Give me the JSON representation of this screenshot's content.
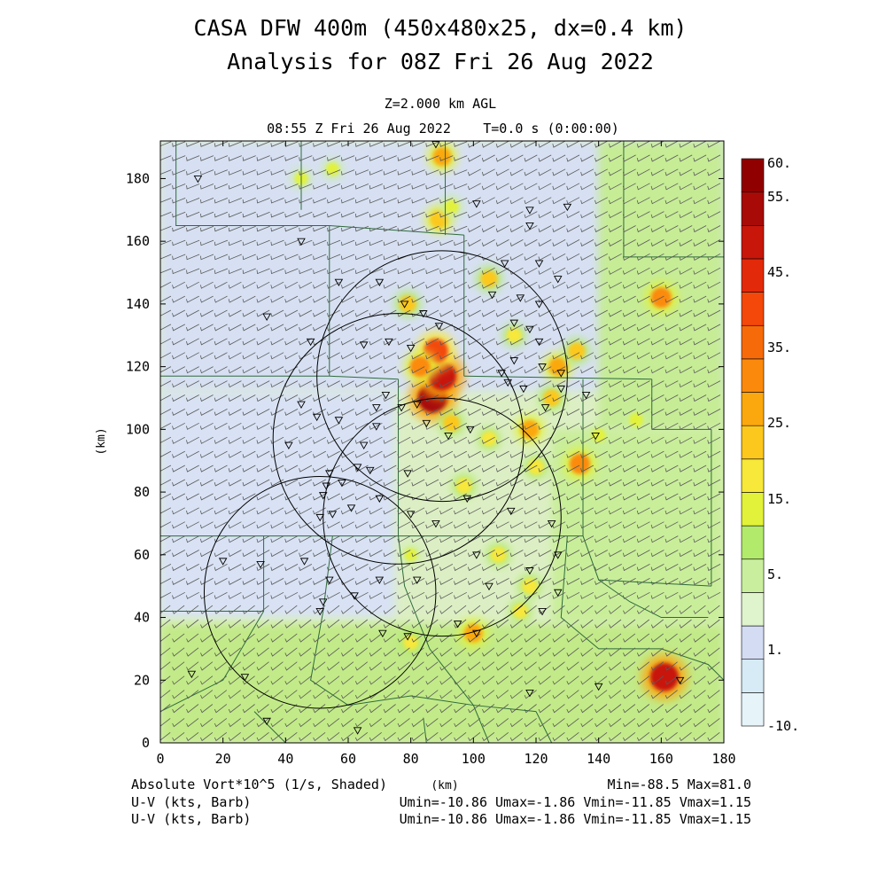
{
  "header": {
    "title_line1": "CASA DFW 400m (450x480x25, dx=0.4 km)",
    "title_line2": "Analysis for 08Z Fri 26 Aug 2022",
    "level": "Z=2.000 km AGL",
    "time": "08:55 Z Fri 26 Aug 2022",
    "elapsed": "T=0.0 s (0:00:00)"
  },
  "footer": {
    "field_label": "Absolute Vort*10^5 (1/s, Shaded)",
    "unit_label": "(km)",
    "minmax": "Min=-88.5 Max=81.0",
    "barb1_label": "U-V (kts, Barb)",
    "barb1_stats": "Umin=-10.86 Umax=-1.86 Vmin=-11.85 Vmax=1.15",
    "barb2_label": "U-V (kts, Barb)",
    "barb2_stats": "Umin=-10.86 Umax=-1.86 Vmin=-11.85 Vmax=1.15"
  },
  "chart_data": {
    "type": "heatmap",
    "field": "Absolute Vort*10^5 (1/s)",
    "ylabel": "(km)",
    "xlabel": "(km)",
    "xlim": [
      0,
      180
    ],
    "ylim": [
      0,
      192
    ],
    "x_ticks": [
      "0",
      "20",
      "40",
      "60",
      "80",
      "100",
      "120",
      "140",
      "160",
      "180"
    ],
    "y_ticks": [
      "0",
      "20",
      "40",
      "60",
      "80",
      "100",
      "120",
      "140",
      "160",
      "180"
    ],
    "x_tick_values": [
      0,
      20,
      40,
      60,
      80,
      100,
      120,
      140,
      160,
      180
    ],
    "y_tick_values": [
      0,
      20,
      40,
      60,
      80,
      100,
      120,
      140,
      160,
      180
    ],
    "min": -88.5,
    "max": 81.0,
    "colorbar": {
      "labels": [
        {
          "text": "60.",
          "value": 60
        },
        {
          "text": "55.",
          "value": 55
        },
        {
          "text": "45.",
          "value": 45
        },
        {
          "text": "35.",
          "value": 35
        },
        {
          "text": "25.",
          "value": 25
        },
        {
          "text": "15.",
          "value": 15
        },
        {
          "text": "5.",
          "value": 5
        },
        {
          "text": "1.",
          "value": 1
        },
        {
          "text": "-10.",
          "value": -10
        }
      ],
      "colors_bottom_to_top": [
        "#e6f4fa",
        "#d6ebf6",
        "#d4dcf4",
        "#dff3cc",
        "#c9ef9e",
        "#b2ea6c",
        "#e2f23a",
        "#f7e83a",
        "#fcc81e",
        "#fba80e",
        "#fb8a0c",
        "#f76a0a",
        "#f3480a",
        "#e22a0a",
        "#c8160a",
        "#a80a08",
        "#900000"
      ]
    },
    "radar_rings": [
      {
        "center": [
          90,
          117
        ],
        "radius_km": 40
      },
      {
        "center": [
          76,
          97
        ],
        "radius_km": 40
      },
      {
        "center": [
          90,
          72
        ],
        "radius_km": 38
      },
      {
        "center": [
          51,
          48
        ],
        "radius_km": 37
      }
    ],
    "hotspots": [
      {
        "x": 87,
        "y": 110,
        "v": 58
      },
      {
        "x": 90,
        "y": 117,
        "v": 55
      },
      {
        "x": 88,
        "y": 125,
        "v": 45
      },
      {
        "x": 83,
        "y": 120,
        "v": 35
      },
      {
        "x": 90,
        "y": 187,
        "v": 30
      },
      {
        "x": 89,
        "y": 167,
        "v": 28
      },
      {
        "x": 93,
        "y": 171,
        "v": 18
      },
      {
        "x": 118,
        "y": 100,
        "v": 30
      },
      {
        "x": 125,
        "y": 110,
        "v": 25
      },
      {
        "x": 127,
        "y": 120,
        "v": 30
      },
      {
        "x": 133,
        "y": 125,
        "v": 25
      },
      {
        "x": 134,
        "y": 89,
        "v": 35
      },
      {
        "x": 120,
        "y": 88,
        "v": 22
      },
      {
        "x": 105,
        "y": 97,
        "v": 20
      },
      {
        "x": 93,
        "y": 102,
        "v": 25
      },
      {
        "x": 79,
        "y": 140,
        "v": 25
      },
      {
        "x": 105,
        "y": 148,
        "v": 25
      },
      {
        "x": 113,
        "y": 130,
        "v": 20
      },
      {
        "x": 160,
        "y": 142,
        "v": 35
      },
      {
        "x": 161,
        "y": 21,
        "v": 55
      },
      {
        "x": 100,
        "y": 35,
        "v": 30
      },
      {
        "x": 108,
        "y": 60,
        "v": 22
      },
      {
        "x": 118,
        "y": 50,
        "v": 22
      },
      {
        "x": 115,
        "y": 42,
        "v": 20
      },
      {
        "x": 80,
        "y": 32,
        "v": 20
      },
      {
        "x": 97,
        "y": 82,
        "v": 22
      },
      {
        "x": 140,
        "y": 98,
        "v": 18
      },
      {
        "x": 152,
        "y": 103,
        "v": 18
      },
      {
        "x": 80,
        "y": 60,
        "v": 15
      },
      {
        "x": 45,
        "y": 180,
        "v": 15
      },
      {
        "x": 55,
        "y": 183,
        "v": 15
      }
    ],
    "stations": [
      [
        12,
        180
      ],
      [
        88,
        191
      ],
      [
        101,
        172
      ],
      [
        118,
        170
      ],
      [
        130,
        171
      ],
      [
        118,
        165
      ],
      [
        45,
        160
      ],
      [
        70,
        147
      ],
      [
        57,
        147
      ],
      [
        78,
        140
      ],
      [
        84,
        137
      ],
      [
        89,
        133
      ],
      [
        34,
        136
      ],
      [
        48,
        128
      ],
      [
        65,
        127
      ],
      [
        73,
        128
      ],
      [
        80,
        126
      ],
      [
        110,
        153
      ],
      [
        121,
        153
      ],
      [
        127,
        148
      ],
      [
        106,
        143
      ],
      [
        115,
        142
      ],
      [
        121,
        140
      ],
      [
        113,
        134
      ],
      [
        118,
        132
      ],
      [
        121,
        128
      ],
      [
        113,
        122
      ],
      [
        122,
        120
      ],
      [
        128,
        118
      ],
      [
        109,
        118
      ],
      [
        111,
        115
      ],
      [
        116,
        113
      ],
      [
        128,
        113
      ],
      [
        136,
        111
      ],
      [
        123,
        107
      ],
      [
        72,
        111
      ],
      [
        69,
        107
      ],
      [
        77,
        107
      ],
      [
        82,
        108
      ],
      [
        85,
        102
      ],
      [
        92,
        98
      ],
      [
        99,
        100
      ],
      [
        45,
        108
      ],
      [
        50,
        104
      ],
      [
        57,
        103
      ],
      [
        41,
        95
      ],
      [
        65,
        95
      ],
      [
        67,
        87
      ],
      [
        79,
        86
      ],
      [
        54,
        86
      ],
      [
        53,
        82
      ],
      [
        58,
        83
      ],
      [
        52,
        79
      ],
      [
        51,
        72
      ],
      [
        55,
        73
      ],
      [
        61,
        75
      ],
      [
        70,
        78
      ],
      [
        80,
        73
      ],
      [
        88,
        70
      ],
      [
        98,
        78
      ],
      [
        112,
        74
      ],
      [
        125,
        70
      ],
      [
        139,
        98
      ],
      [
        63,
        88
      ],
      [
        69,
        101
      ],
      [
        20,
        58
      ],
      [
        32,
        57
      ],
      [
        46,
        58
      ],
      [
        54,
        52
      ],
      [
        62,
        47
      ],
      [
        70,
        52
      ],
      [
        82,
        52
      ],
      [
        101,
        60
      ],
      [
        118,
        55
      ],
      [
        127,
        60
      ],
      [
        127,
        48
      ],
      [
        105,
        50
      ],
      [
        122,
        42
      ],
      [
        52,
        45
      ],
      [
        51,
        42
      ],
      [
        71,
        35
      ],
      [
        79,
        34
      ],
      [
        10,
        22
      ],
      [
        27,
        21
      ],
      [
        34,
        7
      ],
      [
        63,
        4
      ],
      [
        95,
        38
      ],
      [
        101,
        35
      ],
      [
        118,
        16
      ],
      [
        140,
        18
      ],
      [
        166,
        20
      ]
    ],
    "counties": [
      [
        [
          0,
          0
        ],
        [
          180,
          0
        ],
        [
          180,
          192
        ],
        [
          0,
          192
        ]
      ]
    ]
  }
}
